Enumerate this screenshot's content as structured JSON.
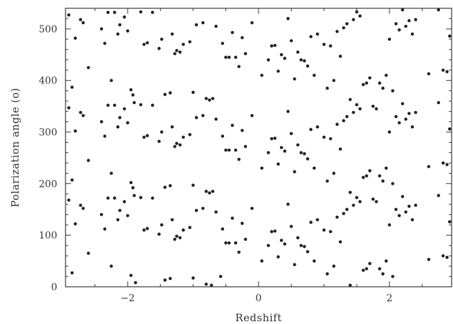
{
  "chart_data": {
    "type": "scatter",
    "xlabel": "Redshift",
    "ylabel": "Polarization angle (o)",
    "xlim": [
      -2.95,
      2.95
    ],
    "ylim": [
      0,
      540
    ],
    "xticks": [
      -2,
      0,
      2
    ],
    "xtick_labels": [
      "−2",
      "0",
      "2"
    ],
    "yticks": [
      0,
      100,
      200,
      300,
      400,
      500
    ],
    "ytick_labels": [
      "0",
      "100",
      "200",
      "300",
      "400",
      "500"
    ],
    "grid": false,
    "marker_color": "#222222",
    "points": [
      [
        -2.9,
        527
      ],
      [
        -2.9,
        347
      ],
      [
        -2.9,
        168
      ],
      [
        -2.85,
        387
      ],
      [
        -2.85,
        207
      ],
      [
        -2.85,
        27
      ],
      [
        -2.8,
        482
      ],
      [
        -2.8,
        302
      ],
      [
        -2.8,
        122
      ],
      [
        -2.72,
        518
      ],
      [
        -2.72,
        338
      ],
      [
        -2.72,
        158
      ],
      [
        -2.68,
        512
      ],
      [
        -2.68,
        332
      ],
      [
        -2.68,
        152
      ],
      [
        -2.6,
        425
      ],
      [
        -2.6,
        245
      ],
      [
        -2.6,
        65
      ],
      [
        -2.4,
        500
      ],
      [
        -2.4,
        320
      ],
      [
        -2.4,
        140
      ],
      [
        -2.35,
        472
      ],
      [
        -2.35,
        292
      ],
      [
        -2.35,
        112
      ],
      [
        -2.3,
        532
      ],
      [
        -2.25,
        400
      ],
      [
        -2.25,
        220
      ],
      [
        -2.25,
        40
      ],
      [
        -2.3,
        352
      ],
      [
        -2.3,
        172
      ],
      [
        -2.2,
        532
      ],
      [
        -2.2,
        352
      ],
      [
        -2.2,
        172
      ],
      [
        -2.15,
        490
      ],
      [
        -2.15,
        310
      ],
      [
        -2.15,
        130
      ],
      [
        -2.12,
        508
      ],
      [
        -2.12,
        328
      ],
      [
        -2.12,
        148
      ],
      [
        -2.05,
        523
      ],
      [
        -2.05,
        345
      ],
      [
        -2.05,
        165
      ],
      [
        -2.0,
        496
      ],
      [
        -2.0,
        318
      ],
      [
        -2.0,
        138
      ],
      [
        -1.95,
        382
      ],
      [
        -1.95,
        202
      ],
      [
        -1.95,
        22
      ],
      [
        -1.92,
        372
      ],
      [
        -1.92,
        192
      ],
      [
        -1.9,
        357
      ],
      [
        -1.9,
        177
      ],
      [
        -1.88,
        8
      ],
      [
        -1.8,
        533
      ],
      [
        -1.8,
        353
      ],
      [
        -1.8,
        173
      ],
      [
        -1.75,
        470
      ],
      [
        -1.75,
        290
      ],
      [
        -1.75,
        110
      ],
      [
        -1.7,
        473
      ],
      [
        -1.7,
        293
      ],
      [
        -1.7,
        113
      ],
      [
        -1.62,
        532
      ],
      [
        -1.62,
        352
      ],
      [
        -1.62,
        172
      ],
      [
        -1.52,
        462
      ],
      [
        -1.52,
        282
      ],
      [
        -1.52,
        102
      ],
      [
        -1.48,
        480
      ],
      [
        -1.48,
        300
      ],
      [
        -1.48,
        120
      ],
      [
        -1.43,
        373
      ],
      [
        -1.43,
        193
      ],
      [
        -1.43,
        13
      ],
      [
        -1.35,
        376
      ],
      [
        -1.35,
        196
      ],
      [
        -1.35,
        16
      ],
      [
        -1.32,
        490
      ],
      [
        -1.32,
        310
      ],
      [
        -1.32,
        130
      ],
      [
        -1.28,
        452
      ],
      [
        -1.28,
        272
      ],
      [
        -1.28,
        92
      ],
      [
        -1.25,
        458
      ],
      [
        -1.25,
        278
      ],
      [
        -1.25,
        98
      ],
      [
        -1.2,
        455
      ],
      [
        -1.2,
        275
      ],
      [
        -1.2,
        95
      ],
      [
        -1.15,
        470
      ],
      [
        -1.15,
        290
      ],
      [
        -1.15,
        110
      ],
      [
        -1.05,
        475
      ],
      [
        -1.05,
        295
      ],
      [
        -1.05,
        115
      ],
      [
        -1.0,
        377
      ],
      [
        -1.0,
        197
      ],
      [
        -1.0,
        17
      ],
      [
        -0.95,
        508
      ],
      [
        -0.95,
        328
      ],
      [
        -0.95,
        148
      ],
      [
        -0.85,
        512
      ],
      [
        -0.85,
        332
      ],
      [
        -0.85,
        152
      ],
      [
        -0.8,
        365
      ],
      [
        -0.8,
        185
      ],
      [
        -0.8,
        5
      ],
      [
        -0.75,
        362
      ],
      [
        -0.75,
        182
      ],
      [
        -0.72,
        3
      ],
      [
        -0.7,
        365
      ],
      [
        -0.7,
        185
      ],
      [
        -0.65,
        505
      ],
      [
        -0.65,
        325
      ],
      [
        -0.65,
        145
      ],
      [
        -0.58,
        20
      ],
      [
        -0.55,
        472
      ],
      [
        -0.55,
        292
      ],
      [
        -0.55,
        112
      ],
      [
        -0.5,
        445
      ],
      [
        -0.5,
        265
      ],
      [
        -0.5,
        85
      ],
      [
        -0.45,
        445
      ],
      [
        -0.45,
        265
      ],
      [
        -0.45,
        85
      ],
      [
        -0.4,
        493
      ],
      [
        -0.4,
        313
      ],
      [
        -0.4,
        133
      ],
      [
        -0.35,
        445
      ],
      [
        -0.35,
        265
      ],
      [
        -0.35,
        85
      ],
      [
        -0.3,
        427
      ],
      [
        -0.3,
        247
      ],
      [
        -0.3,
        67
      ],
      [
        -0.25,
        483
      ],
      [
        -0.25,
        303
      ],
      [
        -0.25,
        123
      ],
      [
        -0.2,
        452
      ],
      [
        -0.2,
        272
      ],
      [
        -0.2,
        92
      ],
      [
        -0.1,
        512
      ],
      [
        -0.1,
        332
      ],
      [
        -0.1,
        152
      ],
      [
        0.05,
        410
      ],
      [
        0.05,
        230
      ],
      [
        0.05,
        50
      ],
      [
        0.15,
        440
      ],
      [
        0.15,
        260
      ],
      [
        0.15,
        80
      ],
      [
        0.2,
        467
      ],
      [
        0.2,
        287
      ],
      [
        0.2,
        107
      ],
      [
        0.25,
        468
      ],
      [
        0.25,
        288
      ],
      [
        0.25,
        108
      ],
      [
        0.3,
        418
      ],
      [
        0.3,
        238
      ],
      [
        0.3,
        58
      ],
      [
        0.35,
        450
      ],
      [
        0.35,
        270
      ],
      [
        0.35,
        90
      ],
      [
        0.4,
        443
      ],
      [
        0.4,
        263
      ],
      [
        0.4,
        83
      ],
      [
        0.45,
        520
      ],
      [
        0.45,
        340
      ],
      [
        0.45,
        160
      ],
      [
        0.5,
        477
      ],
      [
        0.5,
        297
      ],
      [
        0.5,
        117
      ],
      [
        0.55,
        403
      ],
      [
        0.55,
        223
      ],
      [
        0.55,
        43
      ],
      [
        0.6,
        455
      ],
      [
        0.6,
        275
      ],
      [
        0.6,
        95
      ],
      [
        0.65,
        440
      ],
      [
        0.65,
        260
      ],
      [
        0.65,
        80
      ],
      [
        0.7,
        438
      ],
      [
        0.7,
        258
      ],
      [
        0.7,
        78
      ],
      [
        0.75,
        428
      ],
      [
        0.75,
        248
      ],
      [
        0.75,
        68
      ],
      [
        0.8,
        485
      ],
      [
        0.8,
        305
      ],
      [
        0.8,
        125
      ],
      [
        0.85,
        410
      ],
      [
        0.85,
        230
      ],
      [
        0.85,
        50
      ],
      [
        0.9,
        490
      ],
      [
        0.9,
        310
      ],
      [
        0.9,
        130
      ],
      [
        1.0,
        470
      ],
      [
        1.0,
        290
      ],
      [
        1.0,
        110
      ],
      [
        1.05,
        385
      ],
      [
        1.05,
        205
      ],
      [
        1.05,
        25
      ],
      [
        1.1,
        467
      ],
      [
        1.1,
        287
      ],
      [
        1.1,
        107
      ],
      [
        1.15,
        400
      ],
      [
        1.15,
        220
      ],
      [
        1.15,
        40
      ],
      [
        1.2,
        495
      ],
      [
        1.2,
        315
      ],
      [
        1.2,
        135
      ],
      [
        1.25,
        447
      ],
      [
        1.25,
        267
      ],
      [
        1.25,
        87
      ],
      [
        1.3,
        502
      ],
      [
        1.3,
        322
      ],
      [
        1.3,
        142
      ],
      [
        1.35,
        510
      ],
      [
        1.35,
        330
      ],
      [
        1.35,
        150
      ],
      [
        1.4,
        363
      ],
      [
        1.4,
        183
      ],
      [
        1.4,
        3
      ],
      [
        1.45,
        518
      ],
      [
        1.45,
        338
      ],
      [
        1.45,
        158
      ],
      [
        1.5,
        533
      ],
      [
        1.5,
        353
      ],
      [
        1.5,
        173
      ],
      [
        1.55,
        525
      ],
      [
        1.55,
        345
      ],
      [
        1.55,
        165
      ],
      [
        1.6,
        392
      ],
      [
        1.6,
        212
      ],
      [
        1.6,
        32
      ],
      [
        1.65,
        395
      ],
      [
        1.65,
        215
      ],
      [
        1.65,
        35
      ],
      [
        1.7,
        405
      ],
      [
        1.7,
        225
      ],
      [
        1.7,
        45
      ],
      [
        1.75,
        350
      ],
      [
        1.75,
        170
      ],
      [
        1.8,
        345
      ],
      [
        1.8,
        165
      ],
      [
        1.85,
        395
      ],
      [
        1.85,
        215
      ],
      [
        1.85,
        35
      ],
      [
        1.9,
        385
      ],
      [
        1.9,
        205
      ],
      [
        1.9,
        25
      ],
      [
        1.95,
        410
      ],
      [
        1.95,
        230
      ],
      [
        1.95,
        50
      ],
      [
        2.0,
        480
      ],
      [
        2.0,
        300
      ],
      [
        2.0,
        120
      ],
      [
        2.05,
        380
      ],
      [
        2.05,
        200
      ],
      [
        2.05,
        20
      ],
      [
        2.1,
        510
      ],
      [
        2.1,
        330
      ],
      [
        2.1,
        150
      ],
      [
        2.15,
        498
      ],
      [
        2.15,
        318
      ],
      [
        2.15,
        138
      ],
      [
        2.2,
        537
      ],
      [
        2.2,
        355
      ],
      [
        2.2,
        175
      ],
      [
        2.25,
        505
      ],
      [
        2.25,
        325
      ],
      [
        2.25,
        145
      ],
      [
        2.3,
        516
      ],
      [
        2.3,
        336
      ],
      [
        2.3,
        156
      ],
      [
        2.35,
        490
      ],
      [
        2.35,
        310
      ],
      [
        2.35,
        130
      ],
      [
        2.4,
        518
      ],
      [
        2.4,
        338
      ],
      [
        2.4,
        158
      ],
      [
        2.6,
        413
      ],
      [
        2.6,
        233
      ],
      [
        2.6,
        53
      ],
      [
        2.75,
        537
      ],
      [
        2.75,
        357
      ],
      [
        2.75,
        177
      ],
      [
        2.82,
        420
      ],
      [
        2.82,
        240
      ],
      [
        2.82,
        60
      ],
      [
        2.88,
        417
      ],
      [
        2.88,
        237
      ],
      [
        2.88,
        57
      ],
      [
        2.92,
        486
      ],
      [
        2.92,
        306
      ],
      [
        2.92,
        126
      ]
    ]
  }
}
